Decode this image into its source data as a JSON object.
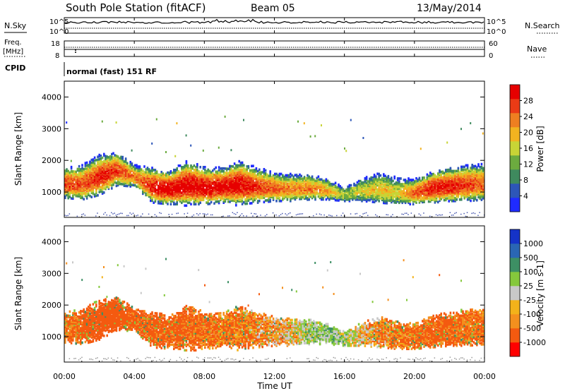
{
  "header": {
    "title": "South Pole Station (fitACF)",
    "beam": "Beam 05",
    "date": "13/May/2014"
  },
  "top_panels": {
    "nsky_label": "N.Sky",
    "nsearch_label": "N.Search",
    "noise_ticks": [
      "10^5",
      "10^0"
    ],
    "freq_label": "Freq.",
    "freq_unit": "[MHz]",
    "freq_ticks": [
      "18",
      "8"
    ],
    "nave_label": "Nave",
    "nave_ticks": [
      "60",
      "0"
    ],
    "cpid_label": "CPID",
    "cpid_value": "normal (fast) 151 RF"
  },
  "colors": {
    "power": [
      "#1f2bff",
      "#2d56b8",
      "#3f8a5e",
      "#6cab3f",
      "#c8d436",
      "#f2b320",
      "#ee7f21",
      "#ea3b16",
      "#e60000"
    ],
    "velocity": [
      "#ff0000",
      "#f45a10",
      "#f4901e",
      "#f3b21a",
      "#c8c8c8",
      "#85c83c",
      "#3d8f64",
      "#2a66b4",
      "#1533c8"
    ]
  },
  "chart_data": [
    {
      "type": "heatmap",
      "title": "",
      "xlabel": "Time UT",
      "ylabel": "Slant Range [km]",
      "x_ticks": [
        "00:00",
        "04:00",
        "08:00",
        "12:00",
        "16:00",
        "20:00",
        "00:00"
      ],
      "x_range_hours": [
        0,
        24
      ],
      "y_ticks": [
        1000,
        2000,
        3000,
        4000
      ],
      "ylim": [
        200,
        4500
      ],
      "colorbar": {
        "label": "Power [dB]",
        "ticks": [
          4,
          8,
          12,
          16,
          20,
          24,
          28
        ],
        "range": [
          0,
          32
        ]
      },
      "echo_band": {
        "hours": [
          0,
          1,
          2,
          3,
          4,
          5,
          6,
          7,
          8,
          9,
          10,
          11,
          12,
          13,
          14,
          15,
          16,
          17,
          18,
          19,
          20,
          21,
          22,
          23,
          24
        ],
        "lower_km": [
          800,
          750,
          900,
          1200,
          1150,
          650,
          600,
          600,
          600,
          650,
          600,
          650,
          700,
          700,
          750,
          750,
          700,
          700,
          650,
          600,
          600,
          650,
          700,
          700,
          750
        ],
        "upper_km": [
          1700,
          1800,
          2100,
          2200,
          1800,
          1700,
          1600,
          1900,
          1700,
          1700,
          1900,
          1700,
          1550,
          1500,
          1500,
          1350,
          1100,
          1400,
          1550,
          1400,
          1350,
          1600,
          1700,
          1800,
          1800
        ],
        "peak_power_db": [
          26,
          24,
          28,
          26,
          22,
          28,
          30,
          30,
          30,
          29,
          30,
          26,
          24,
          22,
          22,
          20,
          14,
          16,
          18,
          16,
          24,
          28,
          28,
          26,
          24
        ]
      }
    },
    {
      "type": "heatmap",
      "title": "",
      "xlabel": "Time UT",
      "ylabel": "Slant Range [km]",
      "x_ticks": [
        "00:00",
        "04:00",
        "08:00",
        "12:00",
        "16:00",
        "20:00",
        "00:00"
      ],
      "x_range_hours": [
        0,
        24
      ],
      "y_ticks": [
        1000,
        2000,
        3000,
        4000
      ],
      "ylim": [
        200,
        4500
      ],
      "colorbar": {
        "label": "Velocity [m s-1]",
        "ticks": [
          "1000",
          "500",
          "100",
          "25",
          "-25",
          "-100",
          "-500",
          "-1000"
        ]
      },
      "echo_band": {
        "hours": [
          0,
          1,
          2,
          3,
          4,
          5,
          6,
          7,
          8,
          9,
          10,
          11,
          12,
          13,
          14,
          15,
          16,
          17,
          18,
          19,
          20,
          21,
          22,
          23,
          24
        ],
        "lower_km": [
          800,
          750,
          900,
          1200,
          1150,
          650,
          600,
          600,
          600,
          650,
          600,
          650,
          700,
          700,
          750,
          750,
          700,
          700,
          650,
          600,
          600,
          650,
          700,
          700,
          750
        ],
        "upper_km": [
          1700,
          1800,
          2100,
          2200,
          1800,
          1700,
          1600,
          1900,
          1700,
          1700,
          1900,
          1700,
          1550,
          1500,
          1500,
          1350,
          1100,
          1400,
          1550,
          1400,
          1350,
          1600,
          1700,
          1800,
          1800
        ],
        "velocity_ms": [
          -120,
          -150,
          -200,
          -180,
          -150,
          -160,
          -140,
          -130,
          -120,
          -110,
          -100,
          -90,
          -60,
          -40,
          30,
          60,
          40,
          -50,
          -80,
          -100,
          -120,
          -130,
          -140,
          -120,
          -110
        ]
      }
    }
  ]
}
